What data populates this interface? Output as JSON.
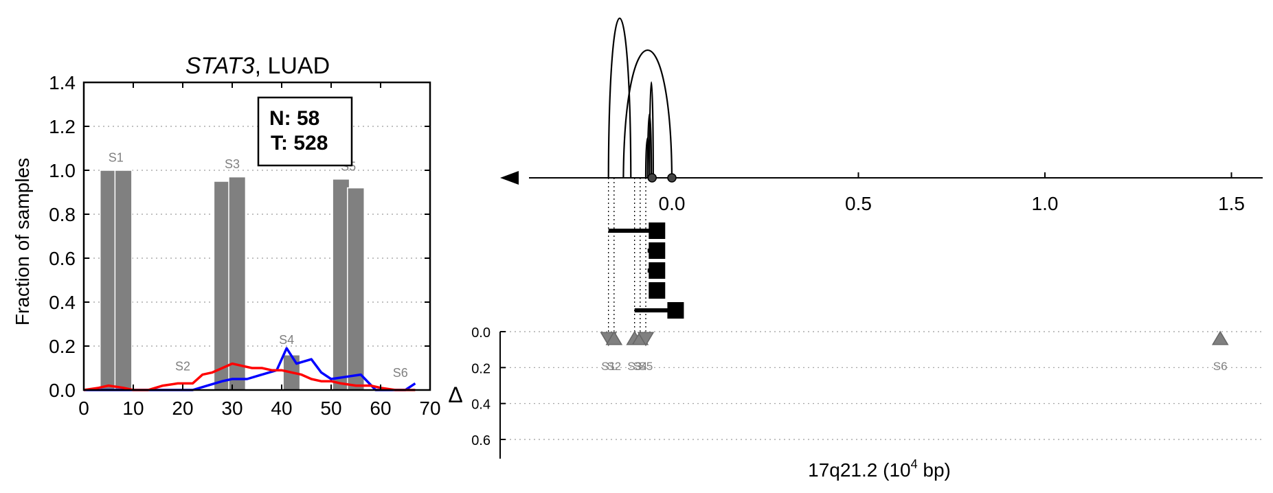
{
  "chart_data": [
    {
      "type": "bar",
      "title_gene": "STAT3",
      "title_rest": ", LUAD",
      "ylabel": "Fraction of samples",
      "xlim": [
        0,
        70
      ],
      "ylim": [
        0,
        1.4
      ],
      "xticks": [
        0,
        10,
        20,
        30,
        40,
        50,
        60,
        70
      ],
      "yticks": [
        0.0,
        0.2,
        0.4,
        0.6,
        0.8,
        1.0,
        1.2,
        1.4
      ],
      "ytick_labels": [
        "0.0",
        "0.2",
        "0.4",
        "0.6",
        "0.8",
        "1.0",
        "1.2",
        "1.4"
      ],
      "grid": "y dotted",
      "legend_box": {
        "n_label": "N: 58",
        "t_label": "T: 528"
      },
      "bar_color": "#808080",
      "bars": [
        {
          "x": 5,
          "value": 1.0
        },
        {
          "x": 8,
          "value": 1.0
        },
        {
          "x": 28,
          "value": 0.95
        },
        {
          "x": 31,
          "value": 0.97
        },
        {
          "x": 42,
          "value": 0.16
        },
        {
          "x": 52,
          "value": 0.96
        },
        {
          "x": 55,
          "value": 0.92
        }
      ],
      "site_labels": [
        {
          "text": "S1",
          "x": 6.5,
          "y": 1.02
        },
        {
          "text": "S2",
          "x": 20,
          "y": 0.07
        },
        {
          "text": "S3",
          "x": 30,
          "y": 0.99
        },
        {
          "text": "S4",
          "x": 41,
          "y": 0.19
        },
        {
          "text": "S5",
          "x": 53.5,
          "y": 0.98
        },
        {
          "text": "S6",
          "x": 64,
          "y": 0.04
        }
      ],
      "series": [
        {
          "color": "#0000ff",
          "x": [
            0,
            5,
            10,
            15,
            20,
            22,
            25,
            28,
            30,
            33,
            36,
            39,
            41,
            43,
            46,
            48,
            50,
            53,
            56,
            59,
            62,
            65,
            67
          ],
          "values": [
            0,
            0,
            0,
            0,
            0,
            0,
            0.02,
            0.04,
            0.05,
            0.05,
            0.07,
            0.09,
            0.19,
            0.12,
            0.14,
            0.08,
            0.05,
            0.06,
            0.07,
            0.0,
            0.0,
            0.0,
            0.03
          ]
        },
        {
          "color": "#ff0000",
          "x": [
            0,
            3,
            5,
            8,
            10,
            13,
            16,
            19,
            22,
            24,
            26,
            28,
            30,
            32,
            34,
            36,
            38,
            40,
            42,
            44,
            46,
            48,
            50,
            52,
            55,
            58,
            60,
            63,
            66,
            67
          ],
          "values": [
            0.0,
            0.01,
            0.02,
            0.01,
            0.0,
            0.0,
            0.02,
            0.03,
            0.03,
            0.07,
            0.08,
            0.1,
            0.12,
            0.11,
            0.1,
            0.1,
            0.09,
            0.09,
            0.08,
            0.07,
            0.05,
            0.04,
            0.04,
            0.03,
            0.02,
            0.02,
            0.01,
            0.0,
            0.0,
            0.0
          ]
        }
      ]
    },
    {
      "type": "scatter",
      "xlabel_main": "17q21.2 (10",
      "xlabel_sup": "4",
      "xlabel_end": " bp)",
      "x_axis_ticks": [
        "0.0",
        "0.5",
        "1.0",
        "1.5"
      ],
      "x_axis_tick_values": [
        0.0,
        0.5,
        1.0,
        1.5
      ],
      "xlim": [
        -0.23,
        1.57
      ],
      "delta_label": "Δ",
      "delta_ylim": [
        0,
        0.7
      ],
      "delta_yticks": [
        "0.0",
        "0.2",
        "0.4",
        "0.6"
      ],
      "delta_ytick_values": [
        0.0,
        0.2,
        0.4,
        0.6
      ],
      "marker_color": "#808080",
      "sites": [
        {
          "label": "S1",
          "x": -0.17,
          "orientation": "down"
        },
        {
          "label": "S2",
          "x": -0.155,
          "orientation": "up"
        },
        {
          "label": "S3",
          "x": -0.1,
          "orientation": "up"
        },
        {
          "label": "S4",
          "x": -0.085,
          "orientation": "up"
        },
        {
          "label": "S5",
          "x": -0.07,
          "orientation": "down"
        },
        {
          "label": "S6",
          "x": 1.47,
          "orientation": "up"
        }
      ],
      "arcs": [
        {
          "from": -0.17,
          "to": -0.11,
          "height": 1.0
        },
        {
          "from": -0.13,
          "to": 0.0,
          "height": 0.8
        },
        {
          "from": -0.06,
          "to": -0.05,
          "height": 0.6
        },
        {
          "from": -0.065,
          "to": -0.055,
          "height": 0.4
        },
        {
          "from": -0.07,
          "to": -0.06,
          "height": 0.25
        }
      ],
      "arc_endpoints": [
        -0.053,
        0.0
      ],
      "transcripts": [
        {
          "start": -0.17,
          "end": -0.04,
          "end_box": -0.04
        },
        {
          "start": -0.065,
          "end": -0.04,
          "end_box": -0.04
        },
        {
          "start": -0.065,
          "end": -0.04,
          "end_box": -0.04
        },
        {
          "start": -0.06,
          "end": -0.04,
          "end_box": -0.04
        },
        {
          "start": -0.1,
          "end": 0.01,
          "end_box": 0.01
        }
      ]
    }
  ]
}
